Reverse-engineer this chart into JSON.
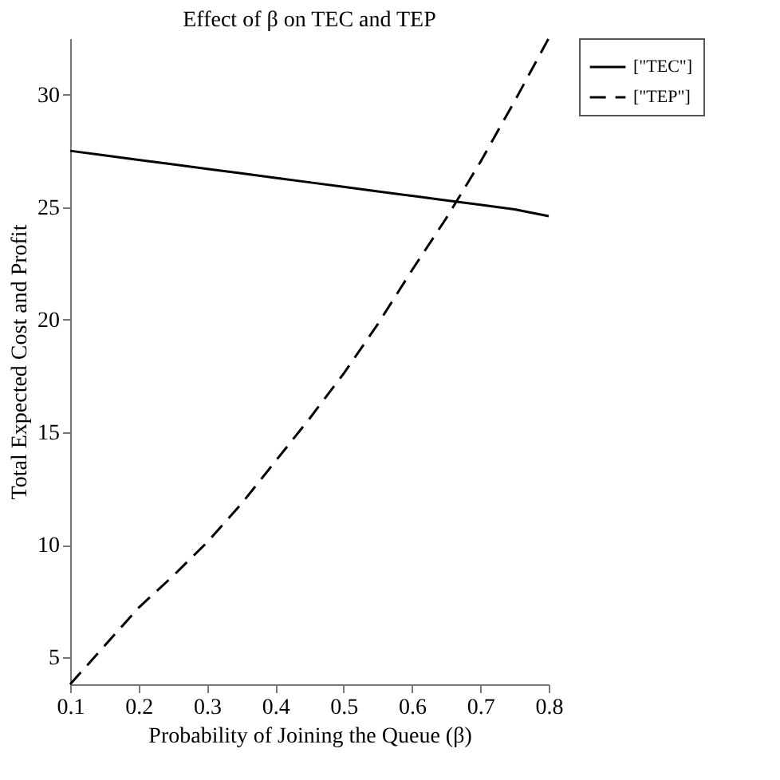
{
  "chart_data": {
    "type": "line",
    "title": "Effect of β on TEC and TEP",
    "xlabel": "Probability of Joining the Queue (β)",
    "ylabel": "Total Expected Cost and Profit",
    "x": [
      0.1,
      0.15,
      0.2,
      0.25,
      0.3,
      0.35,
      0.4,
      0.45,
      0.5,
      0.55,
      0.6,
      0.65,
      0.7,
      0.75,
      0.8
    ],
    "series": [
      {
        "name": "[\"TEC\"]",
        "color": "#000000",
        "line_style": "solid",
        "values": [
          27.5,
          27.3,
          27.1,
          26.9,
          26.7,
          26.5,
          26.3,
          26.1,
          25.9,
          25.7,
          25.5,
          25.3,
          25.1,
          24.9,
          24.6
        ]
      },
      {
        "name": "[\"TEP\"]",
        "color": "#000000",
        "line_style": "dashed",
        "values": [
          3.8,
          5.5,
          7.2,
          8.6,
          10.1,
          11.8,
          13.7,
          15.6,
          17.6,
          19.8,
          22.2,
          24.5,
          27.0,
          29.7,
          32.5
        ]
      }
    ],
    "xlim": [
      0.1,
      0.8
    ],
    "ylim": [
      3.8,
      32.5
    ],
    "xticks": [
      0.1,
      0.2,
      0.3,
      0.4,
      0.5,
      0.6,
      0.7,
      0.8
    ],
    "yticks": [
      5,
      10,
      15,
      20,
      25,
      30
    ],
    "grid": false,
    "legend": "right",
    "marker": "none"
  }
}
